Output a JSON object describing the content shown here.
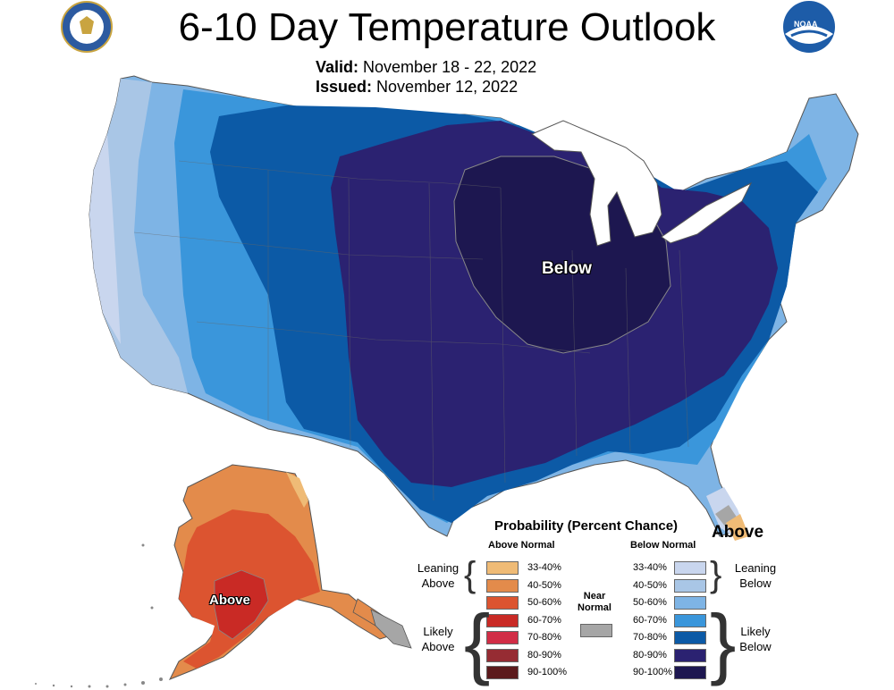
{
  "title": "6-10 Day Temperature Outlook",
  "valid_label": "Valid:",
  "valid_value": "November 18 - 22, 2022",
  "issued_label": "Issued:",
  "issued_value": "November 12, 2022",
  "logos": {
    "left": "department-of-commerce-seal",
    "right_text": "NOAA"
  },
  "map_labels": {
    "below": "Below",
    "above_fl": "Above",
    "above_ak": "Above"
  },
  "legend": {
    "title": "Probability (Percent Chance)",
    "above_header": "Above Normal",
    "below_header": "Below Normal",
    "near_normal": "Near Normal",
    "leaning_above": "Leaning Above",
    "likely_above": "Likely Above",
    "leaning_below": "Leaning Below",
    "likely_below": "Likely Below",
    "above": [
      {
        "label": "33-40%",
        "color": "#efbb76"
      },
      {
        "label": "40-50%",
        "color": "#e38b4b"
      },
      {
        "label": "50-60%",
        "color": "#dc5430"
      },
      {
        "label": "60-70%",
        "color": "#c92a25"
      },
      {
        "label": "70-80%",
        "color": "#d12d46"
      },
      {
        "label": "80-90%",
        "color": "#962c33"
      },
      {
        "label": "90-100%",
        "color": "#5c1a1c"
      }
    ],
    "near_color": "#a6a6a6",
    "below": [
      {
        "label": "33-40%",
        "color": "#c9d6ee"
      },
      {
        "label": "40-50%",
        "color": "#a9c6e6"
      },
      {
        "label": "50-60%",
        "color": "#7eb4e5"
      },
      {
        "label": "60-70%",
        "color": "#3a96db"
      },
      {
        "label": "70-80%",
        "color": "#0c5aa6"
      },
      {
        "label": "80-90%",
        "color": "#2b2271"
      },
      {
        "label": "90-100%",
        "color": "#1d1750"
      }
    ]
  }
}
